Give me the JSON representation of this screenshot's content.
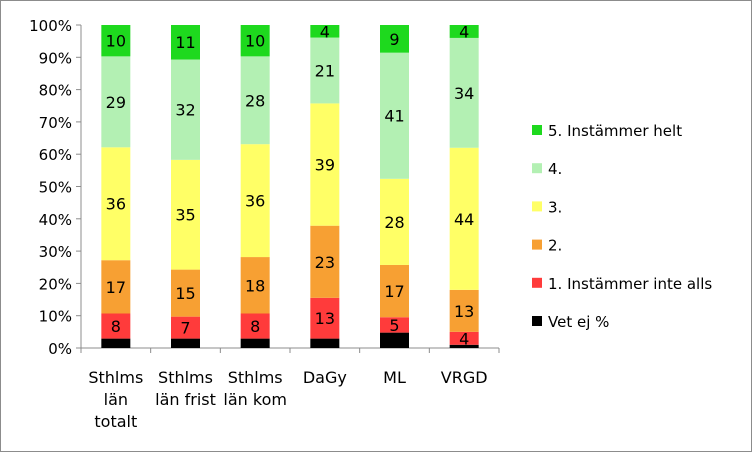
{
  "chart_data": {
    "type": "bar",
    "stacked": true,
    "normalized_percent": true,
    "categories": [
      "Sthlms län totalt",
      "Sthlms län frist",
      "Sthlms län kom",
      "DaGy",
      "ML",
      "VRGD"
    ],
    "category_lines": [
      [
        "Sthlms",
        "län",
        "totalt"
      ],
      [
        "Sthlms",
        "län frist"
      ],
      [
        "Sthlms",
        "län kom"
      ],
      [
        "DaGy"
      ],
      [
        "ML"
      ],
      [
        "VRGD"
      ]
    ],
    "ylim": [
      0,
      100
    ],
    "yticks": [
      "0%",
      "10%",
      "20%",
      "30%",
      "40%",
      "50%",
      "60%",
      "70%",
      "80%",
      "90%",
      "100%"
    ],
    "series": [
      {
        "name": "Vet ej %",
        "color": "#000000",
        "values": [
          3,
          3,
          3,
          3,
          5,
          1
        ],
        "labels": [
          "",
          "",
          "",
          "",
          "",
          ""
        ]
      },
      {
        "name": "1. Instämmer inte alls",
        "color": "#ff3b3b",
        "values": [
          8,
          7,
          8,
          13,
          5,
          4
        ],
        "labels": [
          "8",
          "7",
          "8",
          "13",
          "5",
          "4"
        ]
      },
      {
        "name": "2.",
        "color": "#f7a033",
        "values": [
          17,
          15,
          18,
          23,
          17,
          13
        ],
        "labels": [
          "17",
          "15",
          "18",
          "23",
          "17",
          "13"
        ]
      },
      {
        "name": "3.",
        "color": "#ffff66",
        "values": [
          36,
          35,
          36,
          39,
          28,
          44
        ],
        "labels": [
          "36",
          "35",
          "36",
          "39",
          "28",
          "44"
        ]
      },
      {
        "name": "4.",
        "color": "#b3f0b3",
        "values": [
          29,
          32,
          28,
          21,
          41,
          34
        ],
        "labels": [
          "29",
          "32",
          "28",
          "21",
          "41",
          "34"
        ]
      },
      {
        "name": "5. Instämmer helt",
        "color": "#1ed91e",
        "values": [
          10,
          11,
          10,
          4,
          9,
          4
        ],
        "labels": [
          "10",
          "11",
          "10",
          "4",
          "9",
          "4"
        ]
      }
    ],
    "legend": {
      "position": "right",
      "order": [
        "5. Instämmer helt",
        "4.",
        "3.",
        "2.",
        "1. Instämmer inte alls",
        "Vet ej %"
      ]
    },
    "grid": false
  }
}
